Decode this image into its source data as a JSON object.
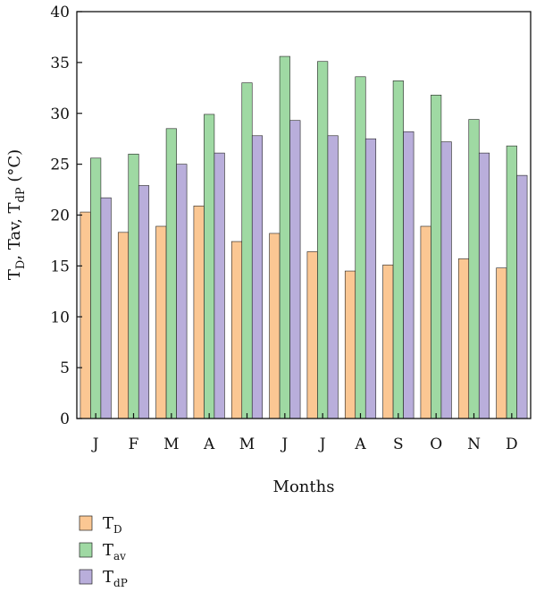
{
  "chart_data": {
    "type": "bar",
    "categories": [
      "J",
      "F",
      "M",
      "A",
      "M",
      "J",
      "J",
      "A",
      "S",
      "O",
      "N",
      "D"
    ],
    "series": [
      {
        "name": "T_D",
        "label_main": "T",
        "label_sub": "D",
        "color": "#fbc793",
        "values": [
          20.3,
          18.3,
          18.9,
          20.9,
          17.4,
          18.2,
          16.4,
          14.5,
          15.1,
          18.9,
          15.7,
          14.8
        ]
      },
      {
        "name": "T_av",
        "label_main": "T",
        "label_sub": "av",
        "color": "#9fd9a3",
        "values": [
          25.6,
          26.0,
          28.5,
          29.9,
          33.0,
          35.6,
          35.1,
          33.6,
          33.2,
          31.8,
          29.4,
          26.8
        ]
      },
      {
        "name": "T_dP",
        "label_main": "T",
        "label_sub": "dP",
        "color": "#b9aedb",
        "values": [
          21.7,
          22.9,
          25.0,
          26.1,
          27.8,
          29.3,
          27.8,
          27.5,
          28.2,
          27.2,
          26.1,
          23.9
        ]
      }
    ],
    "yticks": [
      0,
      5,
      10,
      15,
      20,
      25,
      30,
      35,
      40
    ],
    "ylim": [
      0,
      40
    ],
    "xlabel": "Months",
    "ylabel": "T_D, Tav, T_dP (°C)",
    "ylabel_parts": [
      {
        "text": "T",
        "sub": false
      },
      {
        "text": "D",
        "sub": true
      },
      {
        "text": ", Tav, T",
        "sub": false
      },
      {
        "text": "dP",
        "sub": true
      },
      {
        "text": " (°C)",
        "sub": false
      }
    ],
    "legend_position": "bottom-left",
    "grid": false
  }
}
